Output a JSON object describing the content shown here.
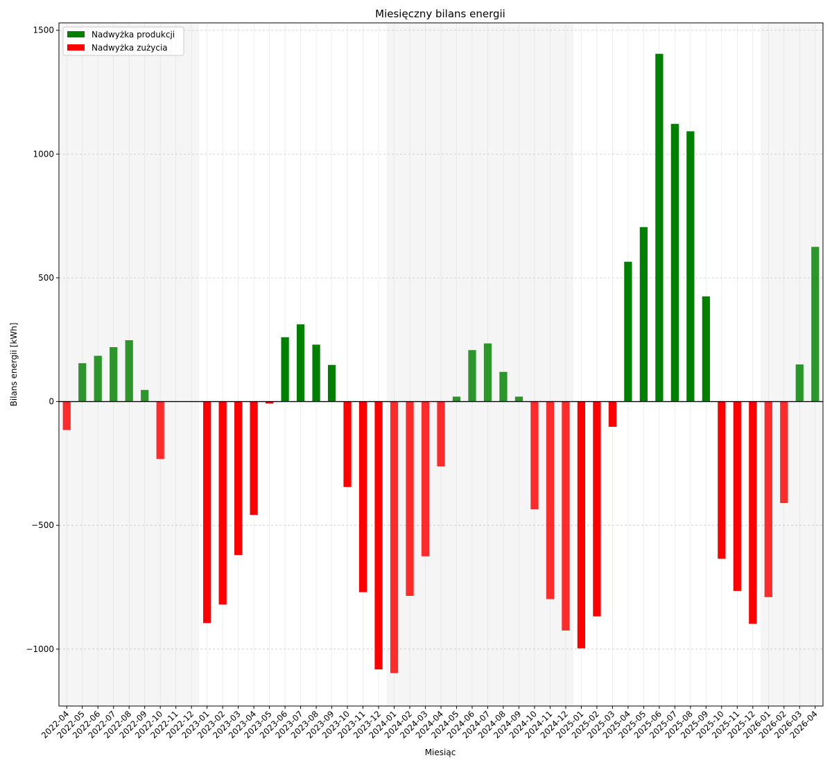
{
  "chart_data": {
    "type": "bar",
    "title": "Miesięczny bilans energii",
    "xlabel": "Miesiąc",
    "ylabel": "Bilans energii [kWh]",
    "ylim": [
      -1230,
      1530
    ],
    "yticks": [
      -1000,
      -500,
      0,
      500,
      1000,
      1500
    ],
    "ytick_labels": [
      "−1000",
      "−500",
      "0",
      "500",
      "1000",
      "1500"
    ],
    "grid": true,
    "legend_position": "top-left",
    "legend": [
      {
        "name": "Nadwyżka produkcji",
        "color": "#008000"
      },
      {
        "name": "Nadwyżka zużycia",
        "color": "#ff0000"
      }
    ],
    "colors": {
      "positive": "#008000",
      "negative": "#ff0000",
      "shade": "#e6e6e6"
    },
    "categories": [
      "2022-04",
      "2022-05",
      "2022-06",
      "2022-07",
      "2022-08",
      "2022-09",
      "2022-10",
      "2022-11",
      "2022-12",
      "2023-01",
      "2023-02",
      "2023-03",
      "2023-04",
      "2023-05",
      "2023-06",
      "2023-07",
      "2023-08",
      "2023-09",
      "2023-10",
      "2023-11",
      "2023-12",
      "2024-01",
      "2024-02",
      "2024-03",
      "2024-04",
      "2024-05",
      "2024-06",
      "2024-07",
      "2024-08",
      "2024-09",
      "2024-10",
      "2024-11",
      "2024-12",
      "2025-01",
      "2025-02",
      "2025-03",
      "2025-04",
      "2025-05",
      "2025-06",
      "2025-07",
      "2025-08",
      "2025-09",
      "2025-10",
      "2025-11",
      "2025-12",
      "2026-01",
      "2026-02",
      "2026-03",
      "2026-04"
    ],
    "values": [
      -115,
      155,
      185,
      220,
      248,
      47,
      -232,
      0,
      0,
      -895,
      -820,
      -620,
      -458,
      -8,
      260,
      312,
      230,
      148,
      -345,
      -770,
      -1082,
      -1097,
      -785,
      -625,
      -262,
      20,
      208,
      235,
      120,
      20,
      -435,
      -798,
      -925,
      -997,
      -868,
      -102,
      565,
      705,
      1405,
      1122,
      1092,
      425,
      -635,
      -765,
      -898,
      -790,
      -410,
      150,
      625
    ],
    "shaded_periods": [
      {
        "from": "2022-04",
        "to": "2022-12"
      },
      {
        "from": "2024-01",
        "to": "2024-12"
      },
      {
        "from": "2026-01",
        "to": "2026-04"
      }
    ]
  }
}
